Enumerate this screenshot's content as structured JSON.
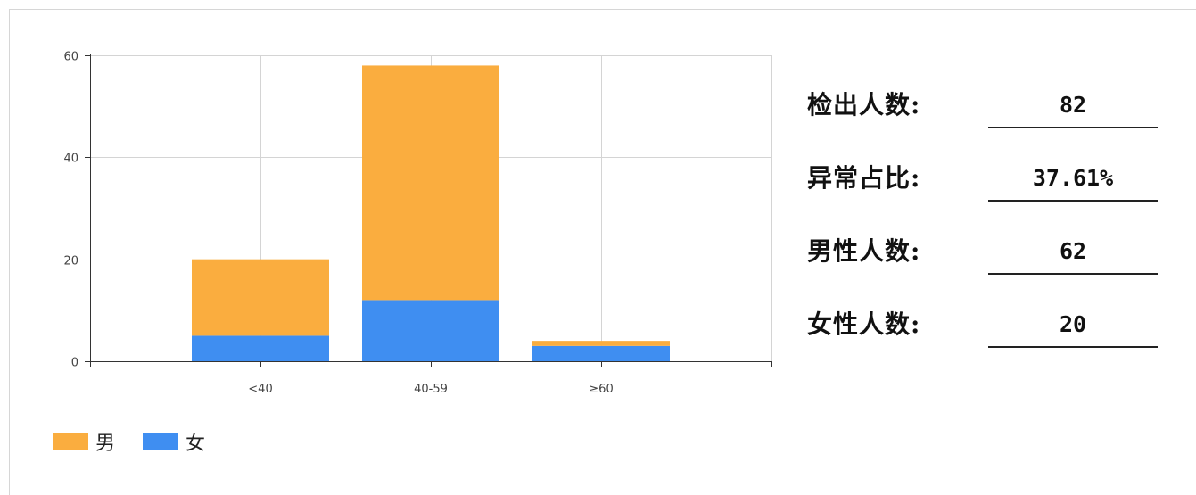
{
  "chart_data": {
    "type": "bar",
    "stacked": true,
    "categories": [
      "<40",
      "40-59",
      "≥60"
    ],
    "series": [
      {
        "name": "女",
        "values": [
          5,
          12,
          3
        ],
        "color": "#3f8ef1"
      },
      {
        "name": "男",
        "values": [
          15,
          46,
          1
        ],
        "color": "#faad3f"
      }
    ],
    "y_ticks": [
      0,
      20,
      40,
      60
    ],
    "ylim": [
      0,
      60
    ],
    "grid": true,
    "legend": {
      "position": "bottom-left",
      "order": [
        "男",
        "女"
      ]
    }
  },
  "stats": [
    {
      "label": "检出人数:",
      "value": "82"
    },
    {
      "label": "异常占比:",
      "value": "37.61%"
    },
    {
      "label": "男性人数:",
      "value": "62"
    },
    {
      "label": "女性人数:",
      "value": "20"
    }
  ]
}
